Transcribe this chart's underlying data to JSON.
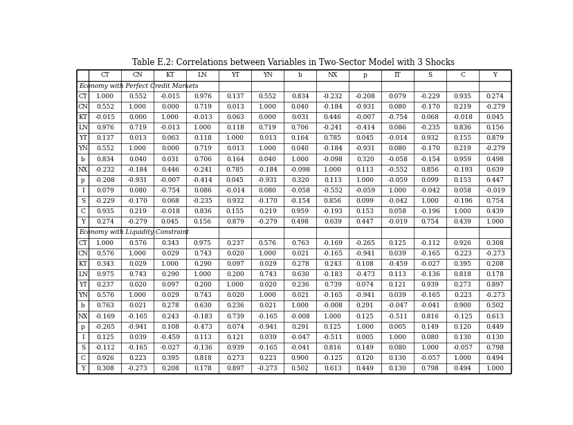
{
  "title": "Table E.2: Correlations between Variables in Two-Sector Model with 3 Shocks",
  "col_headers": [
    "",
    "CT",
    "CN",
    "KT",
    "LN",
    "YT",
    "YN",
    "b",
    "NX",
    "p",
    "IT",
    "S",
    "C",
    "Y"
  ],
  "row_headers": [
    "CT",
    "CN",
    "KT",
    "LN",
    "YT",
    "YN",
    "b",
    "NX",
    "p",
    "I",
    "S",
    "C",
    "Y"
  ],
  "section1_label": "Economy with Perfect Credit Markets",
  "section2_label": "Economy with Liquidity Constraint",
  "section1_data": [
    [
      1.0,
      0.552,
      -0.015,
      0.976,
      0.137,
      0.552,
      0.834,
      -0.232,
      -0.208,
      0.079,
      -0.229,
      0.935,
      0.274
    ],
    [
      0.552,
      1.0,
      0.0,
      0.719,
      0.013,
      1.0,
      0.04,
      -0.184,
      -0.931,
      0.08,
      -0.17,
      0.219,
      -0.279
    ],
    [
      -0.015,
      0.0,
      1.0,
      -0.013,
      0.063,
      0.0,
      0.031,
      0.446,
      -0.007,
      -0.754,
      0.068,
      -0.018,
      0.045
    ],
    [
      0.976,
      0.719,
      -0.013,
      1.0,
      0.118,
      0.719,
      0.706,
      -0.241,
      -0.414,
      0.086,
      -0.235,
      0.836,
      0.156
    ],
    [
      0.137,
      0.013,
      0.063,
      0.118,
      1.0,
      0.013,
      0.164,
      0.785,
      0.045,
      -0.014,
      0.932,
      0.155,
      0.879
    ],
    [
      0.552,
      1.0,
      0.0,
      0.719,
      0.013,
      1.0,
      0.04,
      -0.184,
      -0.931,
      0.08,
      -0.17,
      0.219,
      -0.279
    ],
    [
      0.834,
      0.04,
      0.031,
      0.706,
      0.164,
      0.04,
      1.0,
      -0.098,
      0.32,
      -0.058,
      -0.154,
      0.959,
      0.498
    ],
    [
      -0.232,
      -0.184,
      0.446,
      -0.241,
      0.785,
      -0.184,
      -0.098,
      1.0,
      0.113,
      -0.552,
      0.856,
      -0.193,
      0.639
    ],
    [
      -0.208,
      -0.931,
      -0.007,
      -0.414,
      0.045,
      -0.931,
      0.32,
      0.113,
      1.0,
      -0.059,
      0.099,
      0.153,
      0.447
    ],
    [
      0.079,
      0.08,
      -0.754,
      0.086,
      -0.014,
      0.08,
      -0.058,
      -0.552,
      -0.059,
      1.0,
      -0.042,
      0.058,
      -0.019
    ],
    [
      -0.229,
      -0.17,
      0.068,
      -0.235,
      0.932,
      -0.17,
      -0.154,
      0.856,
      0.099,
      -0.042,
      1.0,
      -0.196,
      0.754
    ],
    [
      0.935,
      0.219,
      -0.018,
      0.836,
      0.155,
      0.219,
      0.959,
      -0.193,
      0.153,
      0.058,
      -0.196,
      1.0,
      0.439
    ],
    [
      0.274,
      -0.279,
      0.045,
      0.156,
      0.879,
      -0.279,
      0.498,
      0.639,
      0.447,
      -0.019,
      0.754,
      0.439,
      1.0
    ]
  ],
  "section2_data": [
    [
      1.0,
      0.576,
      0.343,
      0.975,
      0.237,
      0.576,
      0.763,
      -0.169,
      -0.265,
      0.125,
      -0.112,
      0.926,
      0.308
    ],
    [
      0.576,
      1.0,
      0.029,
      0.743,
      0.02,
      1.0,
      0.021,
      -0.165,
      -0.941,
      0.039,
      -0.165,
      0.223,
      -0.273
    ],
    [
      0.343,
      0.029,
      1.0,
      0.29,
      0.097,
      0.029,
      0.278,
      0.243,
      0.108,
      -0.459,
      -0.027,
      0.395,
      0.208
    ],
    [
      0.975,
      0.743,
      0.29,
      1.0,
      0.2,
      0.743,
      0.63,
      -0.183,
      -0.473,
      0.113,
      -0.136,
      0.818,
      0.178
    ],
    [
      0.237,
      0.02,
      0.097,
      0.2,
      1.0,
      0.02,
      0.236,
      0.739,
      0.074,
      0.121,
      0.939,
      0.273,
      0.897
    ],
    [
      0.576,
      1.0,
      0.029,
      0.743,
      0.02,
      1.0,
      0.021,
      -0.165,
      -0.941,
      0.039,
      -0.165,
      0.223,
      -0.273
    ],
    [
      0.763,
      0.021,
      0.278,
      0.63,
      0.236,
      0.021,
      1.0,
      -0.008,
      0.291,
      -0.047,
      -0.041,
      0.9,
      0.502
    ],
    [
      -0.169,
      -0.165,
      0.243,
      -0.183,
      0.739,
      -0.165,
      -0.008,
      1.0,
      0.125,
      -0.511,
      0.816,
      -0.125,
      0.613
    ],
    [
      -0.265,
      -0.941,
      0.108,
      -0.473,
      0.074,
      -0.941,
      0.291,
      0.125,
      1.0,
      0.005,
      0.149,
      0.12,
      0.449
    ],
    [
      0.125,
      0.039,
      -0.459,
      0.113,
      0.121,
      0.039,
      -0.047,
      -0.511,
      0.005,
      1.0,
      0.08,
      0.13,
      0.13
    ],
    [
      -0.112,
      -0.165,
      -0.027,
      -0.136,
      0.939,
      -0.165,
      -0.041,
      0.816,
      0.149,
      0.08,
      1.0,
      -0.057,
      0.798
    ],
    [
      0.926,
      0.223,
      0.395,
      0.818,
      0.273,
      0.223,
      0.9,
      -0.125,
      0.12,
      0.13,
      -0.057,
      1.0,
      0.494
    ],
    [
      0.308,
      -0.273,
      0.208,
      0.178,
      0.897,
      -0.273,
      0.502,
      0.613,
      0.449,
      0.13,
      0.798,
      0.494,
      1.0
    ]
  ],
  "bg_color": "#ffffff",
  "text_color": "#000000",
  "line_color": "#000000",
  "font_size": 6.5,
  "header_font_size": 6.5,
  "title_font_size": 8.5
}
